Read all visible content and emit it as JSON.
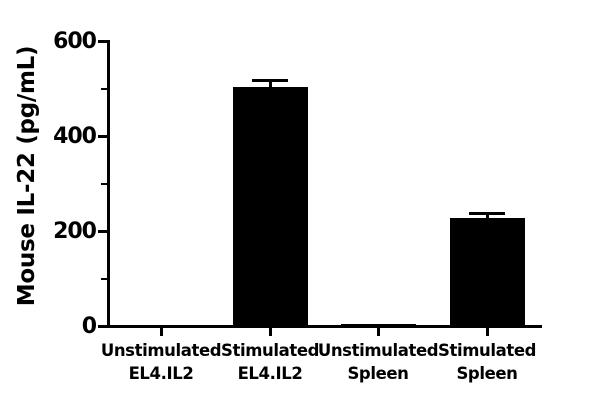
{
  "figure": {
    "background": "#ffffff",
    "ink": "#000000"
  },
  "chart_data": {
    "type": "bar",
    "title": "",
    "ylabel": "Mouse IL-22 (pg/mL)",
    "xlabel": "",
    "categories": [
      {
        "line1": "Unstimulated",
        "line2": "EL4.IL2"
      },
      {
        "line1": "Stimulated",
        "line2": "EL4.IL2"
      },
      {
        "line1": "Unstimulated",
        "line2": "Spleen"
      },
      {
        "line1": "Stimulated",
        "line2": "Spleen"
      }
    ],
    "values": [
      0,
      505,
      6,
      228
    ],
    "errors_plus": [
      0,
      12,
      0,
      10
    ],
    "bar_color": "#000000",
    "error_bar_color": "#000000",
    "ylim": [
      0,
      600
    ],
    "yticks_major": [
      0,
      200,
      400,
      600
    ],
    "yticks_minor": [
      100,
      300,
      500
    ],
    "grid": false,
    "legend": null
  }
}
